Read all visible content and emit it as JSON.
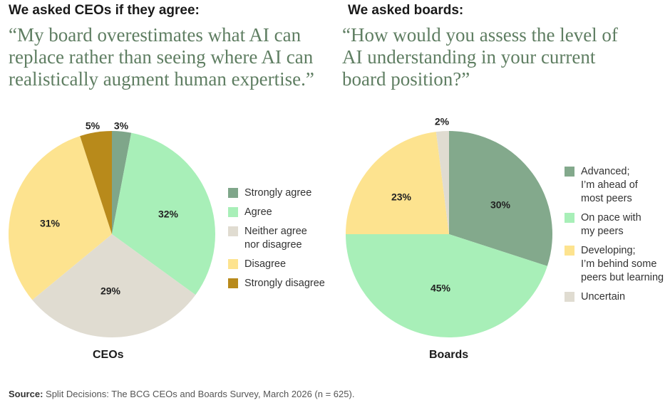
{
  "left": {
    "heading": "We asked CEOs if they agree:",
    "quote_lines": [
      "“My board overestimates what AI can",
      "replace rather than seeing where AI can",
      "realistically augment human expertise.”"
    ]
  },
  "right": {
    "heading": "We asked boards:",
    "quote_lines": [
      "“How would you assess the level of",
      "AI understanding in your current",
      "board position?”"
    ]
  },
  "source": {
    "prefix": "Source:",
    "text": " Split Decisions: The BCG CEOs and Boards Survey, March 2026 (n = 625)."
  },
  "chart_data": [
    {
      "type": "pie",
      "title": "CEOs",
      "legend_position": "right",
      "slices": [
        {
          "label": "Strongly agree",
          "value": 3,
          "display": "3%",
          "color": "#7fa68a"
        },
        {
          "label": "Agree",
          "value": 32,
          "display": "32%",
          "color": "#a8efb8"
        },
        {
          "label": "Neither agree nor disagree",
          "value": 29,
          "display": "29%",
          "color": "#e0dcd1"
        },
        {
          "label": "Disagree",
          "value": 31,
          "display": "31%",
          "color": "#fde38f"
        },
        {
          "label": "Strongly disagree",
          "value": 5,
          "display": "5%",
          "color": "#b88a1b"
        }
      ],
      "legend_lines": [
        [
          "Strongly agree"
        ],
        [
          "Agree"
        ],
        [
          "Neither agree",
          "nor disagree"
        ],
        [
          "Disagree"
        ],
        [
          "Strongly disagree"
        ]
      ]
    },
    {
      "type": "pie",
      "title": "Boards",
      "legend_position": "right",
      "slices": [
        {
          "label": "Advanced; I’m ahead of most peers",
          "value": 30,
          "display": "30%",
          "color": "#83a98c"
        },
        {
          "label": "On pace with my peers",
          "value": 45,
          "display": "45%",
          "color": "#a8efb8"
        },
        {
          "label": "Developing; I’m behind some peers but learning",
          "value": 23,
          "display": "23%",
          "color": "#fde38f"
        },
        {
          "label": "Uncertain",
          "value": 2,
          "display": "2%",
          "color": "#e0dcd1"
        }
      ],
      "legend_lines": [
        [
          "Advanced;",
          "I’m ahead of",
          "most peers"
        ],
        [
          "On pace with",
          "my peers"
        ],
        [
          "Developing;",
          "I’m behind some",
          "peers but learning"
        ],
        [
          "Uncertain"
        ]
      ]
    }
  ]
}
